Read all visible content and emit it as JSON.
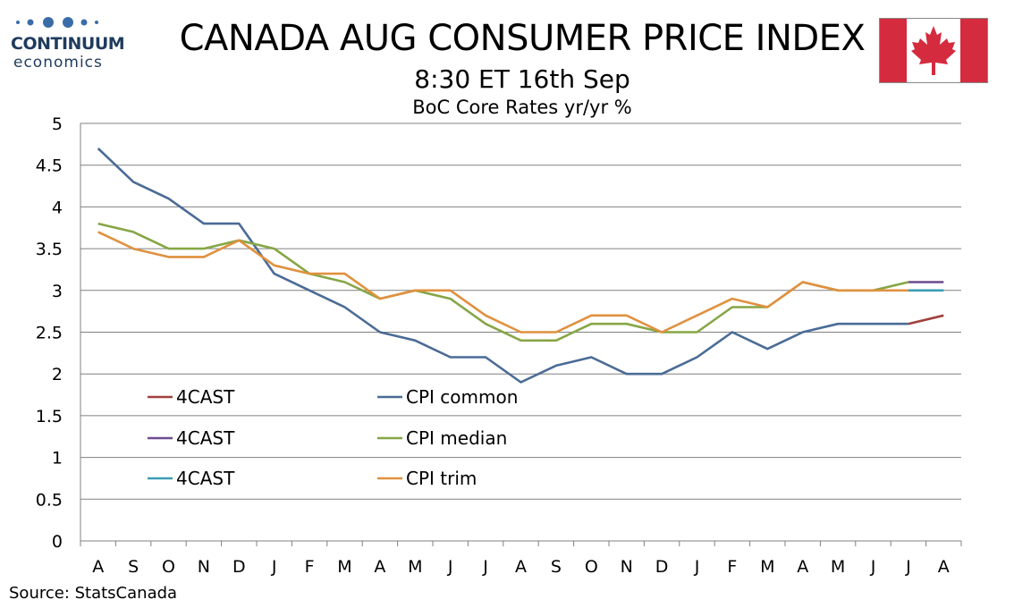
{
  "header": {
    "logo_brand": "CONTINUUM",
    "logo_sub": "economics",
    "title": "CANADA AUG CONSUMER PRICE INDEX",
    "subtitle": "8:30 ET 16th Sep",
    "flag_icon": "canada-flag-icon"
  },
  "footer": {
    "source": "Source: StatsCanada"
  },
  "colors": {
    "cpi_common": "#4a6b96",
    "cpi_median": "#86a645",
    "cpi_trim": "#e0913f",
    "forecast_common": "#a0403c",
    "forecast_median": "#6b4c8f",
    "forecast_trim": "#3a9db5",
    "flag_red": "#d52b3e"
  },
  "chart_data": {
    "type": "line",
    "title": "BoC Core Rates yr/yr %",
    "categories": [
      "A",
      "S",
      "O",
      "N",
      "D",
      "J",
      "F",
      "M",
      "A",
      "M",
      "J",
      "J",
      "A",
      "S",
      "O",
      "N",
      "D",
      "J",
      "F",
      "M",
      "A",
      "M",
      "J",
      "J",
      "A"
    ],
    "ylim": [
      0,
      5
    ],
    "yticks": [
      "0",
      "0.5",
      "1",
      "1.5",
      "2",
      "2.5",
      "3",
      "3.5",
      "4",
      "4.5",
      "5"
    ],
    "grid": true,
    "legend_placement": "lower-left inside plot",
    "series": [
      {
        "name": "CPI common",
        "color_key": "cpi_common",
        "values": [
          4.7,
          4.3,
          4.1,
          3.8,
          3.8,
          3.2,
          3.0,
          2.8,
          2.5,
          2.4,
          2.2,
          2.2,
          1.9,
          2.1,
          2.2,
          2.0,
          2.0,
          2.2,
          2.5,
          2.3,
          2.5,
          2.6,
          2.6,
          2.6,
          null
        ]
      },
      {
        "name": "CPI median",
        "color_key": "cpi_median",
        "values": [
          3.8,
          3.7,
          3.5,
          3.5,
          3.6,
          3.5,
          3.2,
          3.1,
          2.9,
          3.0,
          2.9,
          2.6,
          2.4,
          2.4,
          2.6,
          2.6,
          2.5,
          2.5,
          2.8,
          2.8,
          3.1,
          3.0,
          3.0,
          3.1,
          null
        ]
      },
      {
        "name": "CPI trim",
        "color_key": "cpi_trim",
        "values": [
          3.7,
          3.5,
          3.4,
          3.4,
          3.6,
          3.3,
          3.2,
          3.2,
          2.9,
          3.0,
          3.0,
          2.7,
          2.5,
          2.5,
          2.7,
          2.7,
          2.5,
          2.7,
          2.9,
          2.8,
          3.1,
          3.0,
          3.0,
          3.0,
          null
        ]
      },
      {
        "name": "4CAST",
        "color_key": "forecast_common",
        "values": [
          null,
          null,
          null,
          null,
          null,
          null,
          null,
          null,
          null,
          null,
          null,
          null,
          null,
          null,
          null,
          null,
          null,
          null,
          null,
          null,
          null,
          null,
          null,
          2.6,
          2.7
        ]
      },
      {
        "name": "4CAST",
        "color_key": "forecast_median",
        "values": [
          null,
          null,
          null,
          null,
          null,
          null,
          null,
          null,
          null,
          null,
          null,
          null,
          null,
          null,
          null,
          null,
          null,
          null,
          null,
          null,
          null,
          null,
          null,
          3.1,
          3.1
        ]
      },
      {
        "name": "4CAST",
        "color_key": "forecast_trim",
        "values": [
          null,
          null,
          null,
          null,
          null,
          null,
          null,
          null,
          null,
          null,
          null,
          null,
          null,
          null,
          null,
          null,
          null,
          null,
          null,
          null,
          null,
          null,
          null,
          3.0,
          3.0
        ]
      }
    ],
    "legend": [
      {
        "label": "4CAST",
        "color_key": "forecast_common"
      },
      {
        "label": "CPI common",
        "color_key": "cpi_common"
      },
      {
        "label": "4CAST",
        "color_key": "forecast_median"
      },
      {
        "label": "CPI median",
        "color_key": "cpi_median"
      },
      {
        "label": "4CAST",
        "color_key": "forecast_trim"
      },
      {
        "label": "CPI trim",
        "color_key": "cpi_trim"
      }
    ]
  }
}
